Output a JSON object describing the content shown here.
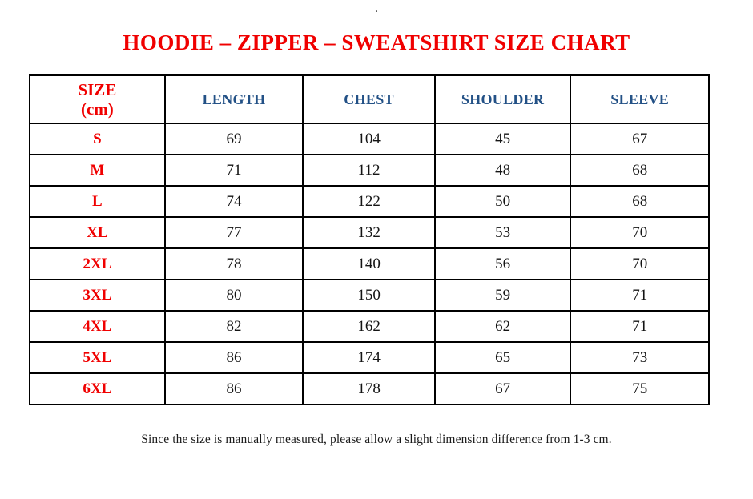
{
  "page": {
    "top_dot": ".",
    "title": "HOODIE – ZIPPER – SWEATSHIRT SIZE CHART",
    "footnote": "Since the size is manually measured, please allow a slight dimension difference from 1-3 cm."
  },
  "colors": {
    "title_red": "#f00000",
    "size_red": "#f00000",
    "header_blue": "#235186",
    "text_dark": "#141414",
    "border_black": "#000000",
    "page_bg": "#ffffff"
  },
  "table": {
    "header": {
      "size_line1": "SIZE",
      "size_line2": "(cm)",
      "cols": [
        "LENGTH",
        "CHEST",
        "SHOULDER",
        "SLEEVE"
      ]
    }
  },
  "chart_data": {
    "type": "table",
    "title": "HOODIE – ZIPPER – SWEATSHIRT SIZE CHART",
    "columns": [
      "SIZE (cm)",
      "LENGTH",
      "CHEST",
      "SHOULDER",
      "SLEEVE"
    ],
    "rows": [
      {
        "size": "S",
        "length": "69",
        "chest": "104",
        "shoulder": "45",
        "sleeve": "67"
      },
      {
        "size": "M",
        "length": "71",
        "chest": "112",
        "shoulder": "48",
        "sleeve": "68"
      },
      {
        "size": "L",
        "length": "74",
        "chest": "122",
        "shoulder": "50",
        "sleeve": "68"
      },
      {
        "size": "XL",
        "length": "77",
        "chest": "132",
        "shoulder": "53",
        "sleeve": "70"
      },
      {
        "size": "2XL",
        "length": "78",
        "chest": "140",
        "shoulder": "56",
        "sleeve": "70"
      },
      {
        "size": "3XL",
        "length": "80",
        "chest": "150",
        "shoulder": "59",
        "sleeve": "71"
      },
      {
        "size": "4XL",
        "length": "82",
        "chest": "162",
        "shoulder": "62",
        "sleeve": "71"
      },
      {
        "size": "5XL",
        "length": "86",
        "chest": "174",
        "shoulder": "65",
        "sleeve": "73"
      },
      {
        "size": "6XL",
        "length": "86",
        "chest": "178",
        "shoulder": "67",
        "sleeve": "75"
      }
    ],
    "note": "Since the size is manually measured, please allow a slight dimension difference from 1-3 cm."
  }
}
